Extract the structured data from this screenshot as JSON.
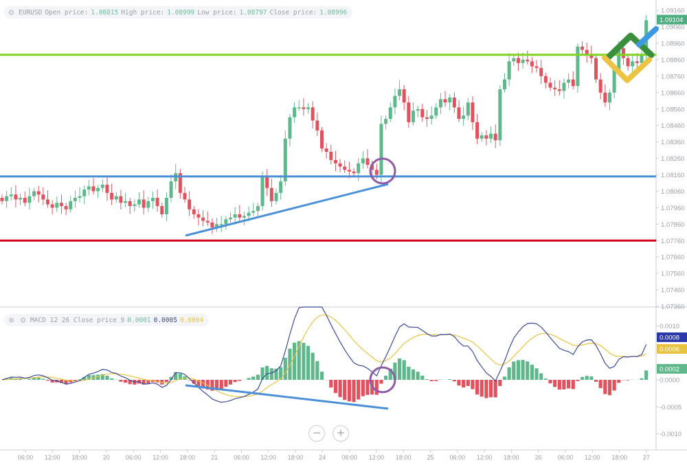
{
  "main_legend": {
    "symbol": "EURUSD",
    "open_label": "Open price:",
    "open": "1.08815",
    "high_label": "High price:",
    "high": "1.08999",
    "low_label": "Low price:",
    "low": "1.08797",
    "close_label": "Close price:",
    "close": "1.08996"
  },
  "macd_legend": {
    "name": "MACD 12 26 Close price 9",
    "v1": "0.0001",
    "v2": "0.0005",
    "v3": "0.0004"
  },
  "zoom_out_label": "−",
  "zoom_in_label": "+",
  "colors": {
    "up": "#5fb88c",
    "down": "#e0535e",
    "support": "#4a90d9",
    "resistance": "#7ed321",
    "low_line": "#d0021b",
    "macd": "#3b4a9a",
    "signal": "#e8c340",
    "circle": "#8e5aa8"
  },
  "chart_data": [
    {
      "type": "candlestick",
      "symbol": "EURUSD",
      "y_ticks": [
        "1.09160",
        "1.09060",
        "1.08960",
        "1.08860",
        "1.08760",
        "1.08660",
        "1.08560",
        "1.08460",
        "1.08360",
        "1.08260",
        "1.08160",
        "1.08060",
        "1.07960",
        "1.07860",
        "1.07760",
        "1.07660",
        "1.07560",
        "1.07460",
        "1.07360"
      ],
      "ylim": [
        1.0734,
        1.0918
      ],
      "last_price_label": "1.09104",
      "closes": [
        1.08,
        1.0803,
        1.0804,
        1.0801,
        1.0802,
        1.0799,
        1.0803,
        1.0806,
        1.0804,
        1.0801,
        1.0798,
        1.0796,
        1.0799,
        1.0797,
        1.0795,
        1.08,
        1.0802,
        1.0803,
        1.0807,
        1.0809,
        1.0806,
        1.0808,
        1.081,
        1.0805,
        1.0801,
        1.0803,
        1.0799,
        1.08,
        1.0797,
        1.0798,
        1.0801,
        1.0796,
        1.08,
        1.0802,
        1.0797,
        1.0792,
        1.0802,
        1.0812,
        1.0817,
        1.0805,
        1.0801,
        1.0795,
        1.0792,
        1.079,
        1.0788,
        1.0787,
        1.0784,
        1.0786,
        1.0786,
        1.0789,
        1.079,
        1.0792,
        1.079,
        1.0791,
        1.0793,
        1.0794,
        1.0797,
        1.0815,
        1.0808,
        1.08,
        1.0805,
        1.0812,
        1.0838,
        1.0851,
        1.0857,
        1.0857,
        1.0856,
        1.0857,
        1.0849,
        1.0843,
        1.0832,
        1.083,
        1.0825,
        1.0823,
        1.0821,
        1.0819,
        1.0818,
        1.0817,
        1.0823,
        1.0826,
        1.0822,
        1.0819,
        1.0816,
        1.0847,
        1.085,
        1.0857,
        1.0864,
        1.0868,
        1.086,
        1.0848,
        1.0855,
        1.0856,
        1.0851,
        1.085,
        1.0852,
        1.0857,
        1.0862,
        1.086,
        1.0863,
        1.0857,
        1.085,
        1.0852,
        1.086,
        1.0848,
        1.0838,
        1.084,
        1.0838,
        1.0841,
        1.0837,
        1.0868,
        1.0874,
        1.0885,
        1.0887,
        1.0884,
        1.0886,
        1.0885,
        1.0882,
        1.0881,
        1.0876,
        1.0872,
        1.0869,
        1.0868,
        1.0867,
        1.0872,
        1.0874,
        1.087,
        1.0894,
        1.0892,
        1.0889,
        1.0887,
        1.0874,
        1.0866,
        1.086,
        1.0866,
        1.088,
        1.0893,
        1.0887,
        1.0882,
        1.0885,
        1.0884,
        1.0889,
        1.091
      ],
      "horizontal_lines": [
        {
          "price": 1.0889,
          "color": "#7ed321"
        },
        {
          "price": 1.0815,
          "color": "#4a90d9"
        },
        {
          "price": 1.0776,
          "color": "#d0021b"
        }
      ]
    },
    {
      "type": "macd",
      "params": {
        "fast": 12,
        "slow": 26,
        "signal": 9
      },
      "y_ticks": [
        "0.0010",
        "0.0000",
        "-0.0005",
        "-0.0010"
      ],
      "ylim": [
        -0.0013,
        0.0013
      ],
      "value_labels": [
        {
          "text": "0.0008",
          "color": "#2b3aa8"
        },
        {
          "text": "0.0006",
          "color": "#e8c340"
        },
        {
          "text": "0.0002",
          "color": "#5fb88c"
        }
      ]
    }
  ],
  "x_ticks": [
    "06:00",
    "12:00",
    "18:00",
    "20",
    "06:00",
    "12:00",
    "18:00",
    "21",
    "06:00",
    "12:00",
    "18:00",
    "24",
    "06:00",
    "12:00",
    "18:00",
    "25",
    "06:00",
    "12:00",
    "18:00",
    "26",
    "06:00",
    "12:00",
    "18:00",
    "27"
  ]
}
